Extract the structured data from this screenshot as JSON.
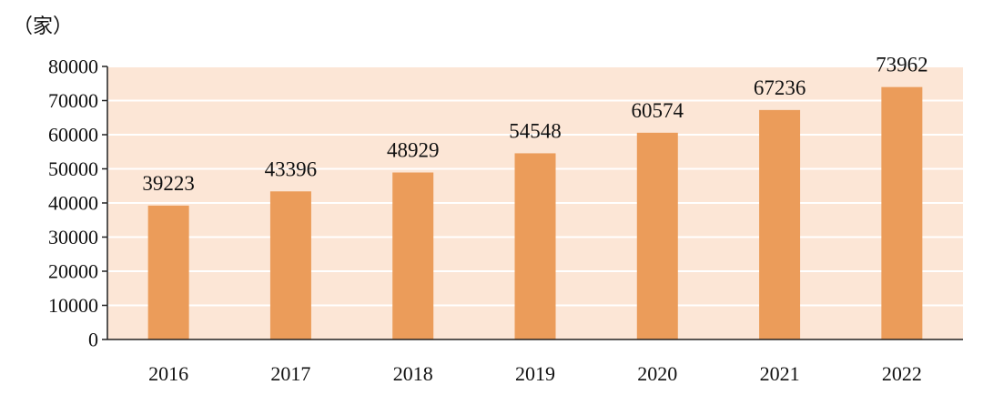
{
  "chart_data": {
    "type": "bar",
    "unit_label": "（家）",
    "categories": [
      "2016",
      "2017",
      "2018",
      "2019",
      "2020",
      "2021",
      "2022"
    ],
    "values": [
      39223,
      43396,
      48929,
      54548,
      60574,
      67236,
      73962
    ],
    "value_labels": [
      "39223",
      "43396",
      "48929",
      "54548",
      "60574",
      "67236",
      "73962"
    ],
    "ylim": [
      0,
      80000
    ],
    "yticks": [
      "0",
      "10000",
      "20000",
      "30000",
      "40000",
      "50000",
      "60000",
      "70000",
      "80000"
    ],
    "grid": true,
    "colors": {
      "bar": "#EB9C5A",
      "plot_background": "#FCE6D6",
      "grid": "#FFFFFF",
      "axis": "#222222"
    }
  }
}
